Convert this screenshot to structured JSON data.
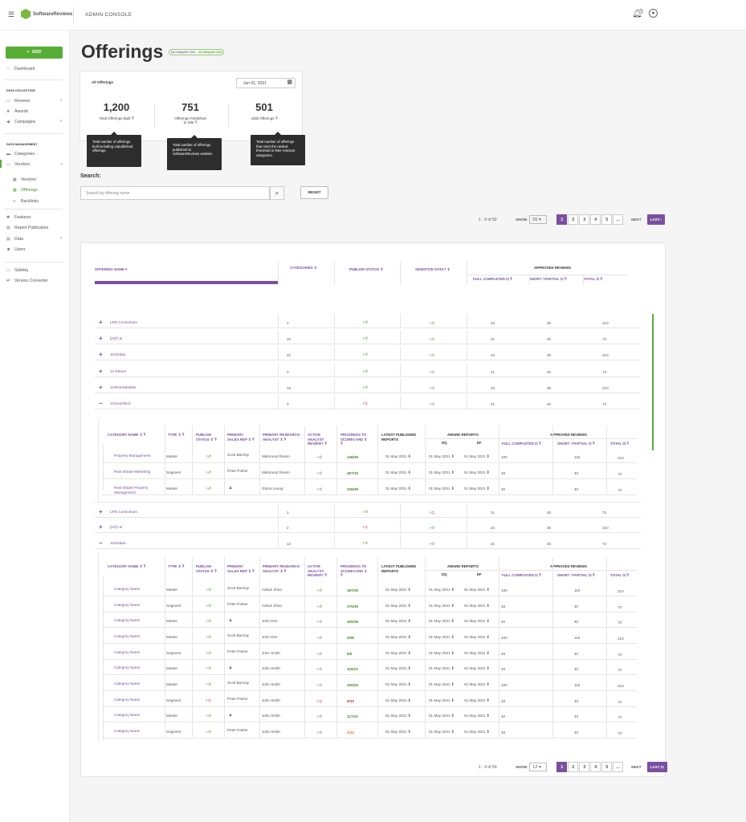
{
  "header": {
    "title": "ADMIN CONSOLE",
    "logo_text": "SoftwareReviews",
    "notif_count": "2"
  },
  "sidebar": {
    "add_label": "ADD",
    "dashboard": "Dashboard",
    "sec_collection": "DATA COLLECTION",
    "reviews": "Reviews",
    "awards": "Awards",
    "campaigns": "Campaigns",
    "sec_management": "DATA MANAGEMENT",
    "categories": "Categories",
    "vendors": "Vendors",
    "vendors_sub": "Vendors",
    "offerings_sub": "Offerings",
    "backlinks_sub": "Backlinks",
    "features": "Features",
    "report_publication": "Report Publication",
    "data": "Data",
    "users": "Users",
    "sidekiq": "Sidekiq",
    "version_converter": "Version Converter"
  },
  "page": {
    "title": "Offerings",
    "view_my": "My Categories View",
    "view_all": "All Categories View"
  },
  "stats": {
    "label": "All Offerings",
    "date": "Jun 01, 2021",
    "built": {
      "value": "1,200",
      "label": "Total Offerings Built",
      "tip": "Total number of offerings built including unpublished offerings."
    },
    "published": {
      "value": "751",
      "label1": "Offerings Published",
      "label2": "to Site",
      "tip": "Total number of offerings published to SoftwareReviews website."
    },
    "valid": {
      "value": "501",
      "label": "Valid Offerings",
      "tip": "Total number of offerings that meet the ranked threshold in their relevant categories."
    }
  },
  "search": {
    "label": "Search:",
    "placeholder": "Search by offering name",
    "reset": "RESET"
  },
  "pager_top": {
    "count": "1 - 9 of 50",
    "show": "SHOW",
    "size": "20",
    "pages": [
      "1",
      "2",
      "3",
      "4",
      "5",
      "..."
    ],
    "next": "NEXT",
    "last": "LAST"
  },
  "pager_bottom": {
    "count": "1 - 9 of 50",
    "show": "SHOW",
    "size": "12",
    "pages": [
      "1",
      "2",
      "3",
      "4",
      "5",
      "..."
    ],
    "next": "NEXT",
    "last": "LAST"
  },
  "table": {
    "headers": {
      "name": "OFFERING NAME",
      "categories": "CATEGORIES",
      "publish": "PUBLISH STATUS",
      "sensitive": "SENSITIVE DATA?",
      "approved": "APPROVED REVIEWS",
      "full": "FULL COMPLETED",
      "short": "SHORT / PARTIAL",
      "total": "TOTAL"
    },
    "rows": [
      {
        "exp": "+",
        "name": "LRN Consortium",
        "cat": "2",
        "pub": "up",
        "sens": "up",
        "full": "34",
        "short": "30",
        "total": "210"
      },
      {
        "exp": "+",
        "name": "[24]7.ai",
        "cat": "10",
        "pub": "up",
        "sens": "up",
        "full": "21",
        "short": "40",
        "total": "73"
      },
      {
        "exp": "+",
        "name": "1010data",
        "cat": "22",
        "pub": "up",
        "sens": "up",
        "full": "34",
        "short": "30",
        "total": "210"
      },
      {
        "exp": "+",
        "name": "12 Return",
        "cat": "3",
        "pub": "up",
        "sens": "up",
        "full": "21",
        "short": "40",
        "total": "73"
      },
      {
        "exp": "+",
        "name": "123FormBuilder",
        "cat": "16",
        "pub": "up",
        "sens": "up",
        "full": "34",
        "short": "30",
        "total": "210"
      },
      {
        "exp": "−",
        "name": "123Landlord",
        "cat": "3",
        "pub": "down",
        "sens": "up",
        "full": "21",
        "short": "40",
        "total": "73"
      }
    ],
    "rows2": [
      {
        "exp": "+",
        "name": "LRN Consortium",
        "cat": "1",
        "pub": "up",
        "sens": "down",
        "full": "21",
        "short": "40",
        "total": "73"
      },
      {
        "exp": "+",
        "name": "[24]7.ai",
        "cat": "2",
        "pub": "down",
        "sens": "up",
        "full": "34",
        "short": "30",
        "total": "210"
      },
      {
        "exp": "−",
        "name": "1010data",
        "cat": "12",
        "pub": "up",
        "sens": "up",
        "full": "21",
        "short": "40",
        "total": "73"
      }
    ]
  },
  "sub_headers": {
    "cat": "CATEGORY NAME",
    "type": "TYPE",
    "pub1": "PUBLISH",
    "pub2": "STATUS",
    "sales1": "PRIMARY",
    "sales2": "SALES REP",
    "analyst1": "PRIMARY RESEARCH",
    "analyst2": "ANALYST",
    "active1": "ACTIVE",
    "active2": "ANALYST",
    "active3": "REVIEW?",
    "prog1": "PROGRESS TO",
    "prog2": "SCORECARD",
    "latest1": "LATEST PUBLISHED",
    "latest2": "REPORTS",
    "award": "AWARD REPORTS",
    "dq": "DQ",
    "ef": "EF",
    "approved": "APPROVED REVIEWS",
    "full": "FULL COMPLETED",
    "short": "SHORT / PARTIAL",
    "total": "TOTAL"
  },
  "sub1": [
    {
      "cat": "Property Management",
      "type": "Master",
      "pub": "up",
      "sales": "Scott Barclay",
      "analyst": "Mahmoud Ramin",
      "active": "up",
      "prog": "148/35",
      "pc": "g",
      "latest": "01 May 2021",
      "dq": "01 May 2021",
      "ef": "01 May 2021",
      "full": "100",
      "short": "110",
      "total": "210"
    },
    {
      "cat": "Real Estate Marketing",
      "type": "Segment",
      "pub": "up",
      "sales": "Peter Parker",
      "analyst": "Mahmoud Ramin",
      "active": "up",
      "prog": "497/10",
      "pc": "g",
      "latest": "01 May 2021",
      "dq": "01 May 2021",
      "ef": "01 May 2021",
      "full": "33",
      "short": "40",
      "total": "73"
    },
    {
      "cat": "Real Estate Property Management",
      "type": "Master",
      "pub": "up",
      "sales": "",
      "analyst": "Gloria Leung",
      "active": "up",
      "prog": "336/35",
      "pc": "g",
      "latest": "01 May 2021",
      "dq": "01 May 2021",
      "ef": "01 May 2021",
      "full": "40",
      "short": "40",
      "total": "73"
    }
  ],
  "sub2": [
    {
      "cat": "Category Name",
      "type": "Master",
      "pub": "up",
      "sales": "Scott Barclay",
      "analyst": "Adrian Zhao",
      "active": "up",
      "prog": "187/30",
      "pc": "g",
      "latest": "01 May 2021",
      "dq": "01 May 2021",
      "ef": "01 May 2021",
      "full": "100",
      "short": "110",
      "total": "210"
    },
    {
      "cat": "Category Name",
      "type": "Segment",
      "pub": "up",
      "sales": "Peter Parker",
      "analyst": "Adrian Zhao",
      "active": "up",
      "prog": "275/30",
      "pc": "g",
      "latest": "01 May 2021",
      "dq": "01 May 2021",
      "ef": "01 May 2021",
      "full": "33",
      "short": "40",
      "total": "73"
    },
    {
      "cat": "Category Name",
      "type": "Master",
      "pub": "up",
      "sales": "",
      "analyst": "John Doe",
      "active": "up",
      "prog": "405/35",
      "pc": "g",
      "latest": "01 May 2021",
      "dq": "01 May 2021",
      "ef": "01 May 2021",
      "full": "40",
      "short": "40",
      "total": "73"
    },
    {
      "cat": "Category Name",
      "type": "Master",
      "pub": "up",
      "sales": "Scott Barclay",
      "analyst": "John Doe",
      "active": "up",
      "prog": "20/5",
      "pc": "g",
      "latest": "01 May 2021",
      "dq": "01 May 2021",
      "ef": "01 May 2021",
      "full": "100",
      "short": "110",
      "total": "210"
    },
    {
      "cat": "Category Name",
      "type": "Segment",
      "pub": "up",
      "sales": "Peter Parker",
      "analyst": "John Smith",
      "active": "up",
      "prog": "5/5",
      "pc": "g",
      "latest": "01 May 2021",
      "dq": "01 May 2021",
      "ef": "01 May 2021",
      "full": "33",
      "short": "40",
      "total": "73"
    },
    {
      "cat": "Category Name",
      "type": "Master",
      "pub": "up",
      "sales": "",
      "analyst": "John Smith",
      "active": "up",
      "prog": "115/10",
      "pc": "g",
      "latest": "01 May 2021",
      "dq": "01 May 2021",
      "ef": "01 May 2021",
      "full": "40",
      "short": "40",
      "total": "73"
    },
    {
      "cat": "Category Name",
      "type": "Master",
      "pub": "up",
      "sales": "Scott Barclay",
      "analyst": "John Smith",
      "active": "up",
      "prog": "200/20",
      "pc": "g",
      "latest": "01 May 2021",
      "dq": "01 May 2021",
      "ef": "01 May 2021",
      "full": "100",
      "short": "110",
      "total": "210"
    },
    {
      "cat": "Category Name",
      "type": "Segment",
      "pub": "down",
      "sales": "Peter Parker",
      "analyst": "John Smith",
      "active": "down",
      "prog": "0/10",
      "pc": "r",
      "latest": "01 May 2021",
      "dq": "01 May 2021",
      "ef": "01 May 2021",
      "full": "33",
      "short": "40",
      "total": "73"
    },
    {
      "cat": "Category Name",
      "type": "Master",
      "pub": "up",
      "sales": "",
      "analyst": "John Smith",
      "active": "up",
      "prog": "117/10",
      "pc": "g",
      "latest": "01 May 2021",
      "dq": "01 May 2021",
      "ef": "01 May 2021",
      "full": "40",
      "short": "40",
      "total": "73"
    },
    {
      "cat": "Category Name",
      "type": "Segment",
      "pub": "up",
      "sales": "Peter Parker",
      "analyst": "John Smith",
      "active": "up",
      "prog": "2/14",
      "pc": "o",
      "latest": "01 May 2021",
      "dq": "01 May 2021",
      "ef": "01 May 2021",
      "full": "33",
      "short": "40",
      "total": "73"
    }
  ]
}
